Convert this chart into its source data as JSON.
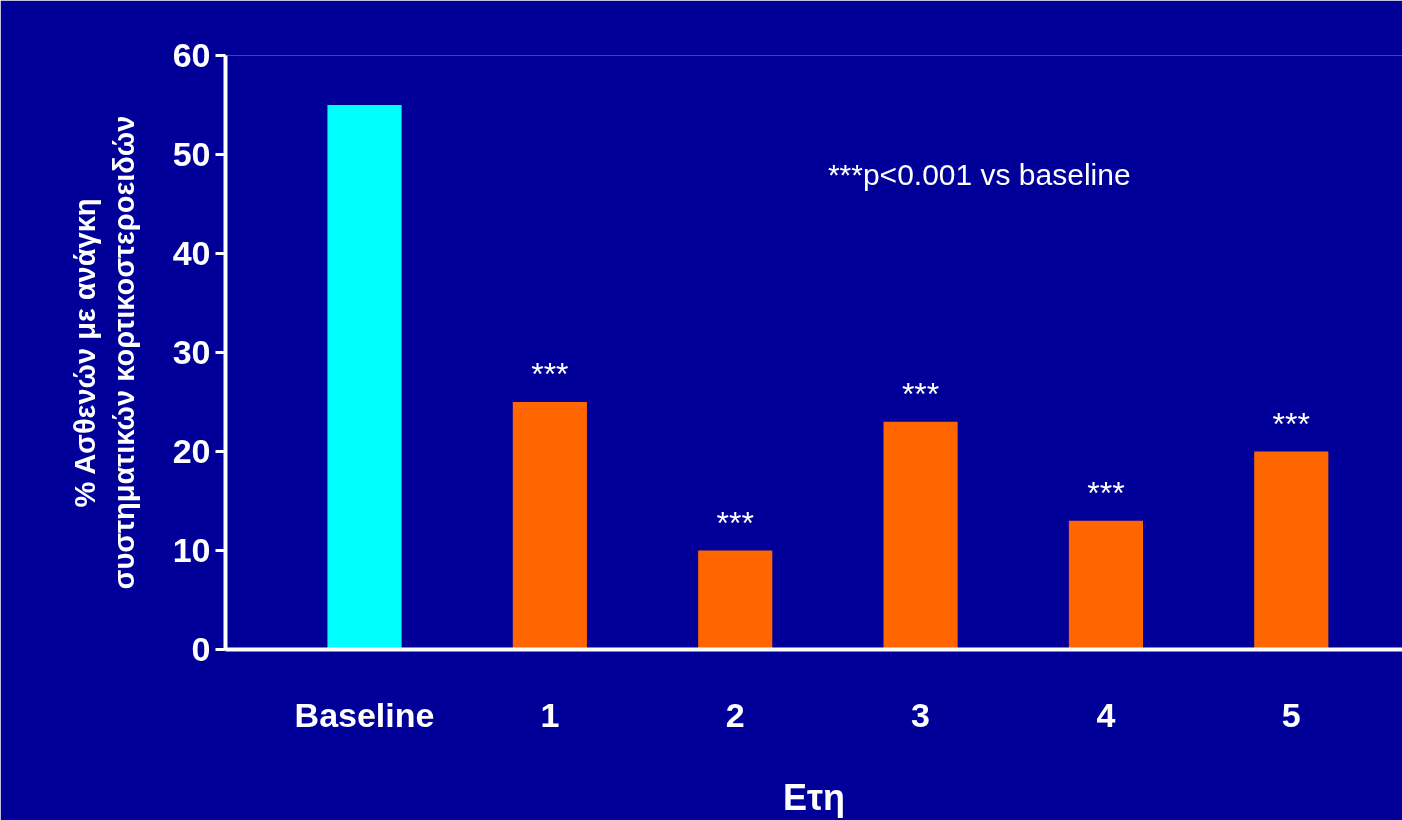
{
  "chart_data": {
    "type": "bar",
    "categories": [
      "Baseline",
      "1",
      "2",
      "3",
      "4",
      "5"
    ],
    "values": [
      55,
      25,
      10,
      23,
      13,
      20
    ],
    "colors": [
      "#00ffff",
      "#ff6600",
      "#ff6600",
      "#ff6600",
      "#ff6600",
      "#ff6600"
    ],
    "ylim": [
      0,
      60
    ],
    "yticks": [
      0,
      10,
      20,
      30,
      40,
      50,
      60
    ],
    "xlabel": "Ετη",
    "ylabel": "% Ασθενών με ανάγκη\nσυστηματικών κορτικοστεροειδών",
    "grid": false,
    "annotations": [
      "***p<0.001 vs baseline",
      {
        "text": "***",
        "x": "1",
        "y": 25
      },
      {
        "text": "***",
        "x": "2",
        "y": 10
      },
      {
        "text": "***",
        "x": "3",
        "y": 23
      },
      {
        "text": "***",
        "x": "4",
        "y": 13
      },
      {
        "text": "***",
        "x": "5",
        "y": 20
      }
    ]
  }
}
